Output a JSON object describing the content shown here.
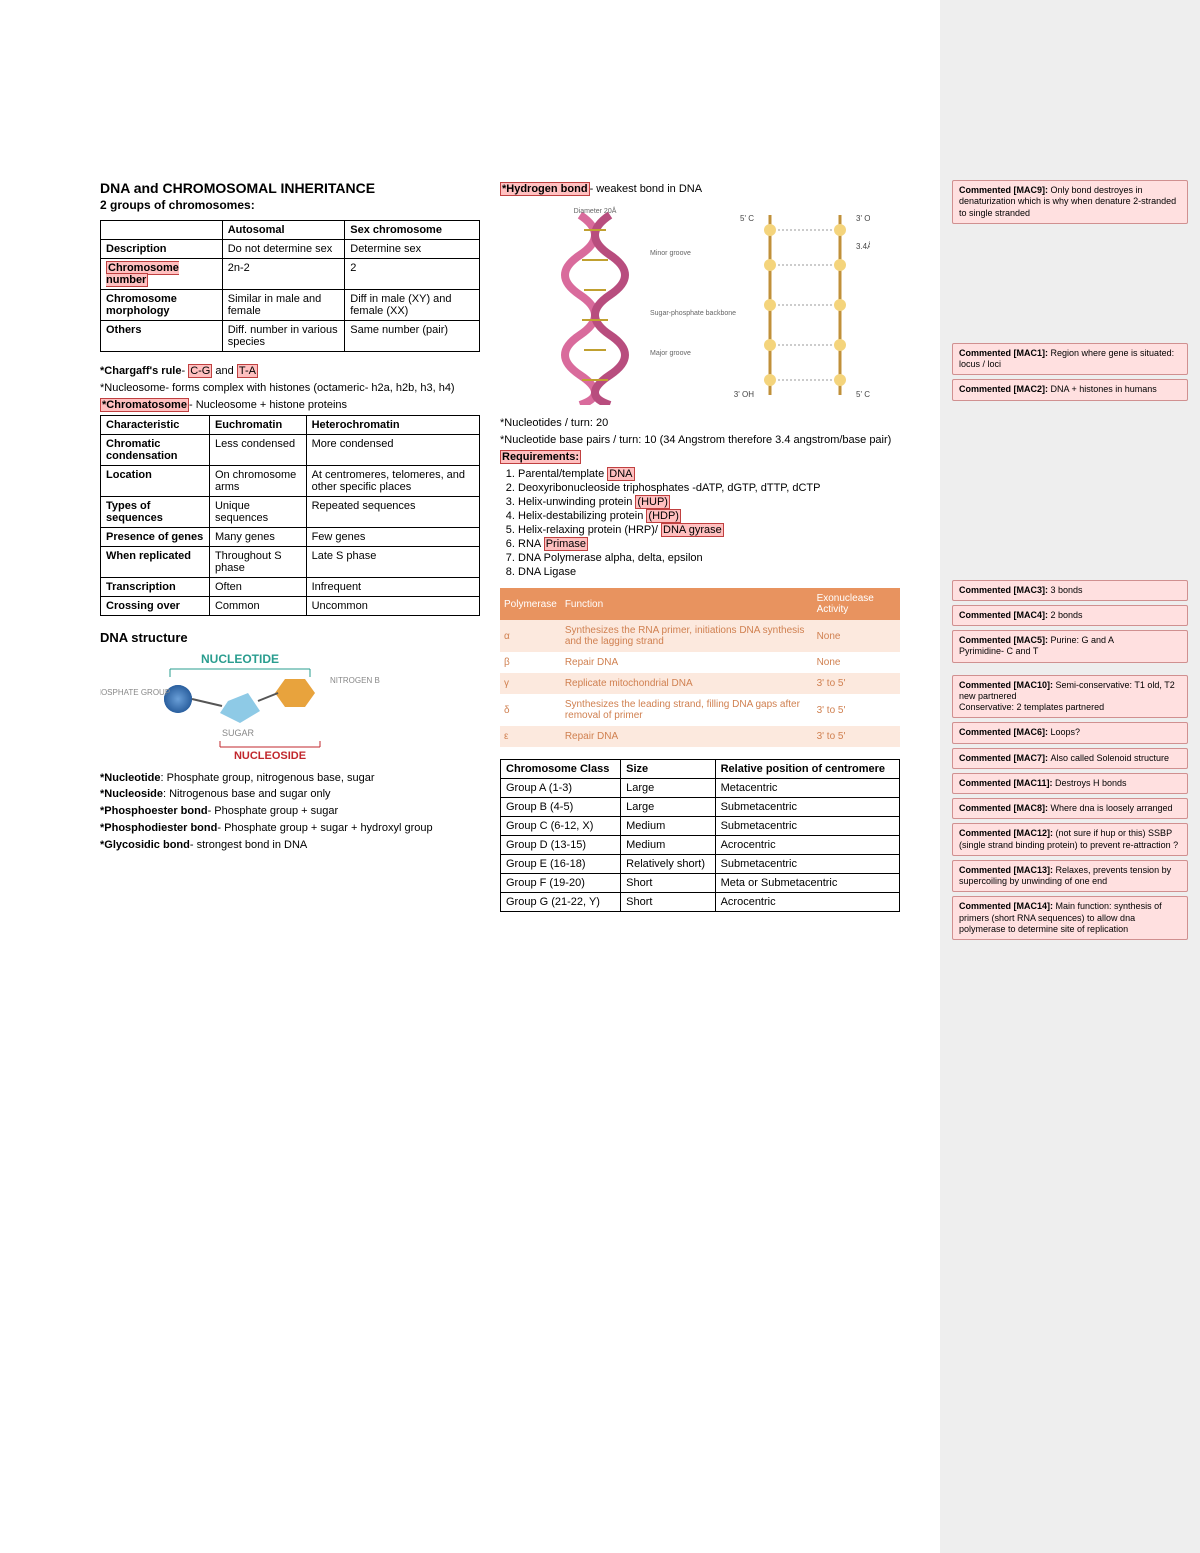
{
  "left": {
    "title": "DNA and CHROMOSOMAL INHERITANCE",
    "subtitle": "2 groups of chromosomes:",
    "table1": {
      "headers": [
        "",
        "Autosomal",
        "Sex chromosome"
      ],
      "rows": [
        [
          "Description",
          "Do not determine sex",
          "Determine sex"
        ],
        [
          "Chromosome number",
          "2n-2",
          "2"
        ],
        [
          "Chromosome morphology",
          "Similar in male and female",
          "Diff in male (XY) and female (XX)"
        ],
        [
          "Others",
          "Diff. number in various species",
          "Same number (pair)"
        ]
      ],
      "hl_row": 1
    },
    "chargaff_label": "*Chargaff's rule",
    "chargaff_frag1": "- ",
    "chargaff_hl1": "C-G",
    "chargaff_mid": " and ",
    "chargaff_hl2": "T-A",
    "nucleosome": "*Nucleosome- forms complex with histones (octameric- h2a, h2b, h3, h4)",
    "chromatosome_lbl": "*Chromatosome",
    "chromatosome_txt": "- Nucleosome + histone proteins",
    "table2": {
      "headers": [
        "Characteristic",
        "Euchromatin",
        "Heterochromatin"
      ],
      "rows": [
        [
          "Chromatic condensation",
          "Less condensed",
          "More condensed"
        ],
        [
          "Location",
          "On chromosome arms",
          "At centromeres, telomeres, and other specific places"
        ],
        [
          "Types of sequences",
          "Unique sequences",
          "Repeated sequences"
        ],
        [
          "Presence of genes",
          "Many genes",
          "Few genes"
        ],
        [
          "When replicated",
          "Throughout S phase",
          "Late S phase"
        ],
        [
          "Transcription",
          "Often",
          "Infrequent"
        ],
        [
          "Crossing over",
          "Common",
          "Uncommon"
        ]
      ]
    },
    "dna_structure": "DNA structure",
    "diagram": {
      "nucleotide": "NUCLEOTIDE",
      "phosphate": "PHOSPHATE GROUP",
      "nitrogen": "NITROGEN BASE",
      "sugar": "SUGAR",
      "nucleoside": "NUCLEOSIDE",
      "colors": {
        "nucleotide": "#2a9d8f",
        "nucleoside": "#c1272d",
        "phosphate": "#3a6fb0",
        "nitrogen": "#e8a33d",
        "sugar": "#6baed6",
        "label": "#888888"
      }
    },
    "defs": [
      {
        "b": "*Nucleotide",
        "t": ": Phosphate group, nitrogenous base, sugar"
      },
      {
        "b": "*Nucleoside",
        "t": ": Nitrogenous base and sugar only"
      },
      {
        "b": "*Phosphoester bond",
        "t": "- Phosphate group + sugar"
      },
      {
        "b": "*Phosphodiester bond",
        "t": "- Phosphate group + sugar + hydroxyl group"
      },
      {
        "b": "*Glycosidic bond",
        "t": "- strongest bond in DNA"
      }
    ]
  },
  "right": {
    "hbond_lbl": "*Hydrogen bond",
    "hbond_txt": "- weakest bond in DNA",
    "helix_caption1": "*Nucleotides / turn: 20",
    "helix_caption2": "*Nucleotide base pairs / turn: 10 (34 Angstrom therefore 3.4 angstrom/base pair)",
    "requirements_lbl": "Requirements:",
    "requirements": [
      {
        "t": "Parental/template ",
        "hl": "DNA"
      },
      {
        "t": "Deoxyribonucleoside triphosphates -dATP, dGTP, dTTP, dCTP",
        "hl": ""
      },
      {
        "t": "Helix-unwinding protein ",
        "hl": "(HUP)"
      },
      {
        "t": "Helix-destabilizing protein ",
        "hl": "(HDP)"
      },
      {
        "t": "Helix-relaxing protein (HRP)/ ",
        "hl": "DNA gyrase"
      },
      {
        "t": "RNA ",
        "hl": "Primase"
      },
      {
        "t": "DNA Polymerase alpha, delta, epsilon",
        "hl": ""
      },
      {
        "t": "DNA Ligase",
        "hl": ""
      }
    ],
    "poly_table": {
      "headers": [
        "Polymerase",
        "Function",
        "Exonuclease Activity"
      ],
      "rows": [
        [
          "α",
          "Synthesizes the RNA primer, initiations DNA synthesis and the lagging strand",
          "None"
        ],
        [
          "β",
          "Repair DNA",
          "None"
        ],
        [
          "γ",
          "Replicate mitochondrial DNA",
          "3' to 5'"
        ],
        [
          "δ",
          "Synthesizes the leading strand, filling DNA gaps after removal of primer",
          "3' to 5'"
        ],
        [
          "ε",
          "Repair DNA",
          "3' to 5'"
        ]
      ]
    },
    "chromo_table": {
      "headers": [
        "Chromosome Class",
        "Size",
        "Relative position of centromere"
      ],
      "rows": [
        [
          "Group A (1-3)",
          "Large",
          "Metacentric"
        ],
        [
          "Group B (4-5)",
          "Large",
          "Submetacentric"
        ],
        [
          "Group C (6-12, X)",
          "Medium",
          "Submetacentric"
        ],
        [
          "Group D (13-15)",
          "Medium",
          "Acrocentric"
        ],
        [
          "Group E (16-18)",
          "Relatively short)",
          "Submetacentric"
        ],
        [
          "Group F (19-20)",
          "Short",
          "Meta or Submetacentric"
        ],
        [
          "Group G (21-22, Y)",
          "Short",
          "Acrocentric"
        ]
      ]
    }
  },
  "comments": [
    {
      "id": "[MAC9]",
      "text": "Only bond destroyes in denaturization which is why when denature 2-stranded to single stranded",
      "gap": 0
    },
    {
      "id": "[MAC1]",
      "text": "Region where gene is situated: locus / loci",
      "gap": 115
    },
    {
      "id": "[MAC2]",
      "text": "DNA + histones in humans",
      "gap": 0
    },
    {
      "id": "[MAC3]",
      "text": "3 bonds",
      "gap": 175
    },
    {
      "id": "[MAC4]",
      "text": "2 bonds",
      "gap": 0
    },
    {
      "id": "[MAC5]",
      "text": "Purine: G and A\nPyrimidine- C and T",
      "gap": 0
    },
    {
      "id": "[MAC10]",
      "text": "Semi-conservative: T1 old, T2 new partnered\nConservative: 2 templates partnered",
      "gap": 8
    },
    {
      "id": "[MAC6]",
      "text": "Loops?",
      "gap": 0
    },
    {
      "id": "[MAC7]",
      "text": "Also called Solenoid structure",
      "gap": 0
    },
    {
      "id": "[MAC11]",
      "text": "Destroys H bonds",
      "gap": 0
    },
    {
      "id": "[MAC8]",
      "text": "Where dna is loosely arranged",
      "gap": 0
    },
    {
      "id": "[MAC12]",
      "text": "(not sure if hup or this) SSBP (single strand binding protein) to prevent re-attraction ?",
      "gap": 0
    },
    {
      "id": "[MAC13]",
      "text": "Relaxes, prevents tension by supercoiling by unwinding of one end",
      "gap": 0
    },
    {
      "id": "[MAC14]",
      "text": "Main function: synthesis of primers (short RNA sequences) to allow dna polymerase to determine site of replication",
      "gap": 0
    }
  ]
}
